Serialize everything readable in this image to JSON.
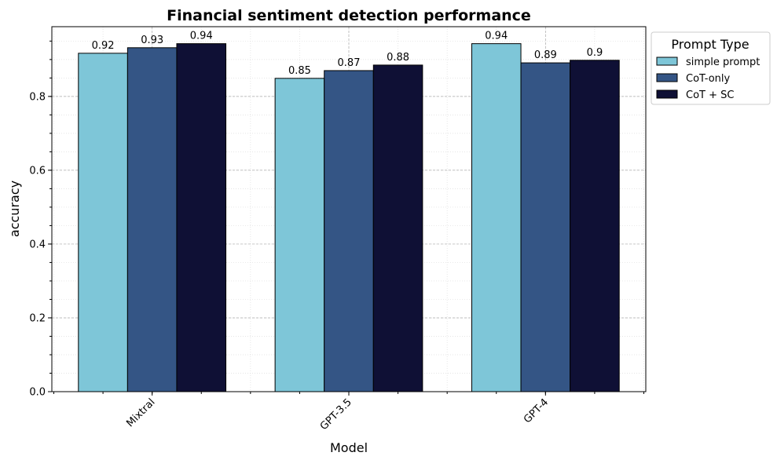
{
  "chart_data": {
    "type": "bar",
    "title": "Financial sentiment detection performance",
    "xlabel": "Model",
    "ylabel": "accuracy",
    "categories": [
      "Mixtral",
      "GPT-3.5",
      "GPT-4"
    ],
    "series": [
      {
        "name": "simple prompt",
        "color": "#7ec6d8",
        "values": [
          0.917,
          0.849,
          0.943
        ],
        "labels": [
          "0.92",
          "0.85",
          "0.94"
        ]
      },
      {
        "name": "CoT-only",
        "color": "#345585",
        "values": [
          0.932,
          0.87,
          0.891
        ],
        "labels": [
          "0.93",
          "0.87",
          "0.89"
        ]
      },
      {
        "name": "CoT + SC",
        "color": "#0f1035",
        "values": [
          0.943,
          0.885,
          0.898
        ],
        "labels": [
          "0.94",
          "0.88",
          "0.9"
        ]
      }
    ],
    "ylim": [
      0,
      0.989
    ],
    "xlim": [
      -0.51,
      2.51
    ],
    "yticks": [
      "0.0",
      "0.2",
      "0.4",
      "0.6",
      "0.8"
    ],
    "grid": true,
    "legend": {
      "title": "Prompt Type",
      "placement": "outside upper-right"
    }
  }
}
